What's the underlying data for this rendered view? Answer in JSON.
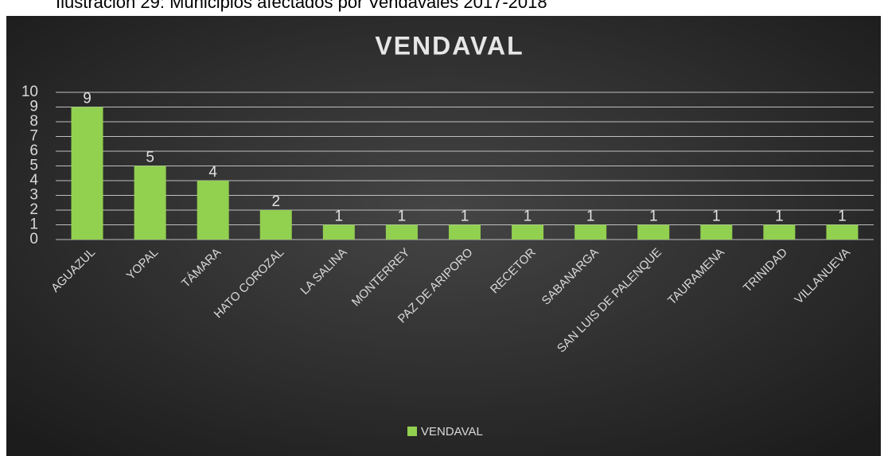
{
  "caption": "Ilustración 29: Municipios afectados por Vendavales 2017-2018",
  "chart_data": {
    "type": "bar",
    "title": "VENDAVAL",
    "categories": [
      "AGUAZUL",
      "YOPAL",
      "TÁMARA",
      "HATO COROZAL",
      "LA SALINA",
      "MONTERREY",
      "PAZ DE ARIPORO",
      "RECETOR",
      "SABANARGA",
      "SAN LUIS DE PALENQUE",
      "TAURAMENA",
      "TRINIDAD",
      "VILLANUEVA"
    ],
    "series": [
      {
        "name": "VENDAVAL",
        "color": "#92d050",
        "values": [
          9,
          5,
          4,
          2,
          1,
          1,
          1,
          1,
          1,
          1,
          1,
          1,
          1
        ]
      }
    ],
    "ylim": [
      0,
      10
    ],
    "yticks": [
      0,
      1,
      2,
      3,
      4,
      5,
      6,
      7,
      8,
      9,
      10
    ],
    "grid": true,
    "legend": "bottom"
  }
}
